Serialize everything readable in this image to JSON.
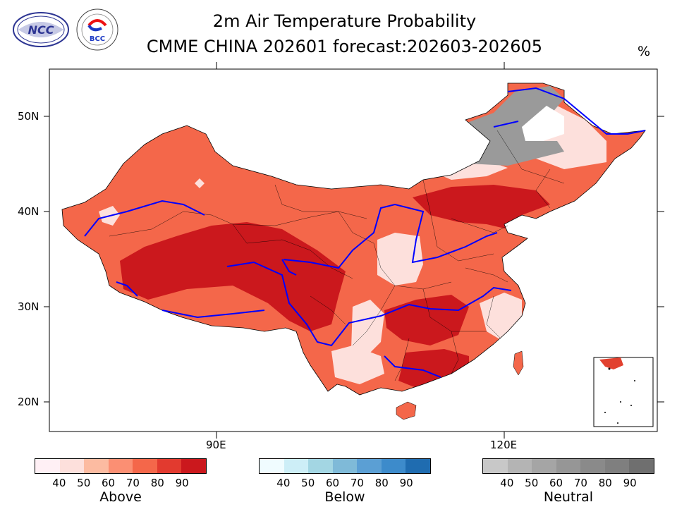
{
  "title": {
    "line1": "2m Air Temperature Probability",
    "line2": "CMME CHINA 202601 forecast:202603-202605",
    "unit": "%"
  },
  "logos": {
    "left_text": "NCC",
    "right_text": "BCC"
  },
  "map": {
    "lat_labels": [
      "50N",
      "40N",
      "30N",
      "20N"
    ],
    "lon_labels": [
      "90E",
      "120E"
    ],
    "colors": {
      "above_90": "#cb181d",
      "above_80": "#e2412f",
      "above_70": "#f5674a",
      "above_60": "#fb8a6a",
      "above_50": "#fcb6a2",
      "above_40": "#fde0dc",
      "neutral_60": "#9a9a9a",
      "rivers": "#0000ff",
      "borders": "#000000"
    }
  },
  "legends": [
    {
      "title": "Above",
      "ticks": [
        "40",
        "50",
        "60",
        "70",
        "80",
        "90"
      ],
      "colors": [
        "#fff0f5",
        "#fde0dc",
        "#fcbba1",
        "#fb8f73",
        "#f4674a",
        "#e23a2f",
        "#cb181d"
      ]
    },
    {
      "title": "Below",
      "ticks": [
        "40",
        "50",
        "60",
        "70",
        "80",
        "90"
      ],
      "colors": [
        "#f0fcff",
        "#cdeef7",
        "#a3d6e3",
        "#7fbad8",
        "#5b9fd4",
        "#3d8bcb",
        "#1f6cb0"
      ]
    },
    {
      "title": "Neutral",
      "ticks": [
        "40",
        "50",
        "60",
        "70",
        "80",
        "90"
      ],
      "colors": [
        "#c8c8c8",
        "#b4b4b4",
        "#a5a5a5",
        "#969696",
        "#8a8a8a",
        "#7f7f7f",
        "#6f6f6f"
      ]
    }
  ]
}
